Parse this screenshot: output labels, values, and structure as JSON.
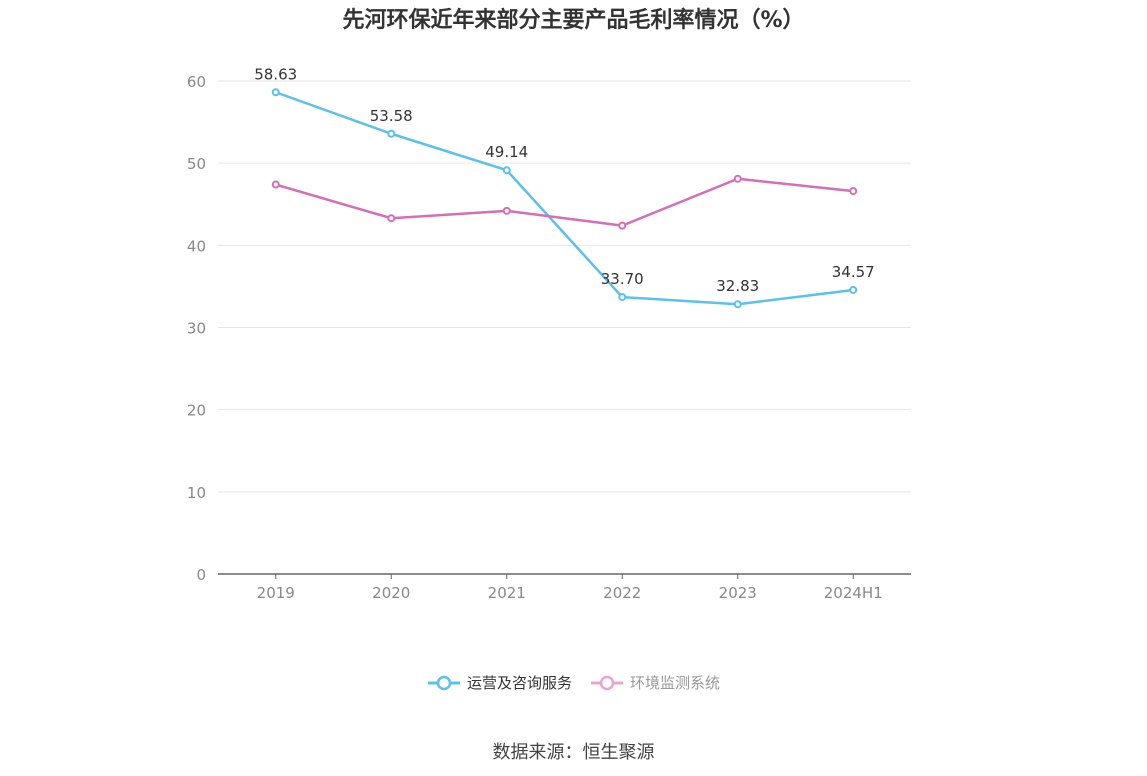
{
  "title": "先河环保近年来部分主要产品毛利率情况（%）",
  "source": "数据来源：恒生聚源",
  "colors": {
    "series1": "#5bc0eb",
    "series2": "#d36eb7",
    "grid": "#e6e6e6",
    "axis": "#666666",
    "tick_text": "#888888",
    "label_text": "#333333"
  },
  "chart_data": {
    "type": "line",
    "title": "先河环保近年来部分主要产品毛利率情况（%）",
    "xlabel": "",
    "ylabel": "",
    "categories": [
      "2019",
      "2020",
      "2021",
      "2022",
      "2023",
      "2024H1"
    ],
    "yticks": [
      "0",
      "10",
      "20",
      "30",
      "40",
      "50",
      "60"
    ],
    "ylim": [
      0,
      60
    ],
    "grid": true,
    "legend_position": "bottom",
    "series": [
      {
        "name": "运营及咨询服务",
        "values": [
          58.63,
          53.58,
          49.14,
          33.7,
          32.83,
          34.57
        ],
        "labels": [
          "58.63",
          "53.58",
          "49.14",
          "33.70",
          "32.83",
          "34.57"
        ],
        "color": "#5bc0eb",
        "show_labels": true
      },
      {
        "name": "环境监测系统",
        "values": [
          47.4,
          43.3,
          44.2,
          42.4,
          48.1,
          46.6
        ],
        "labels": [],
        "color": "#d36eb7",
        "show_labels": false
      }
    ]
  }
}
